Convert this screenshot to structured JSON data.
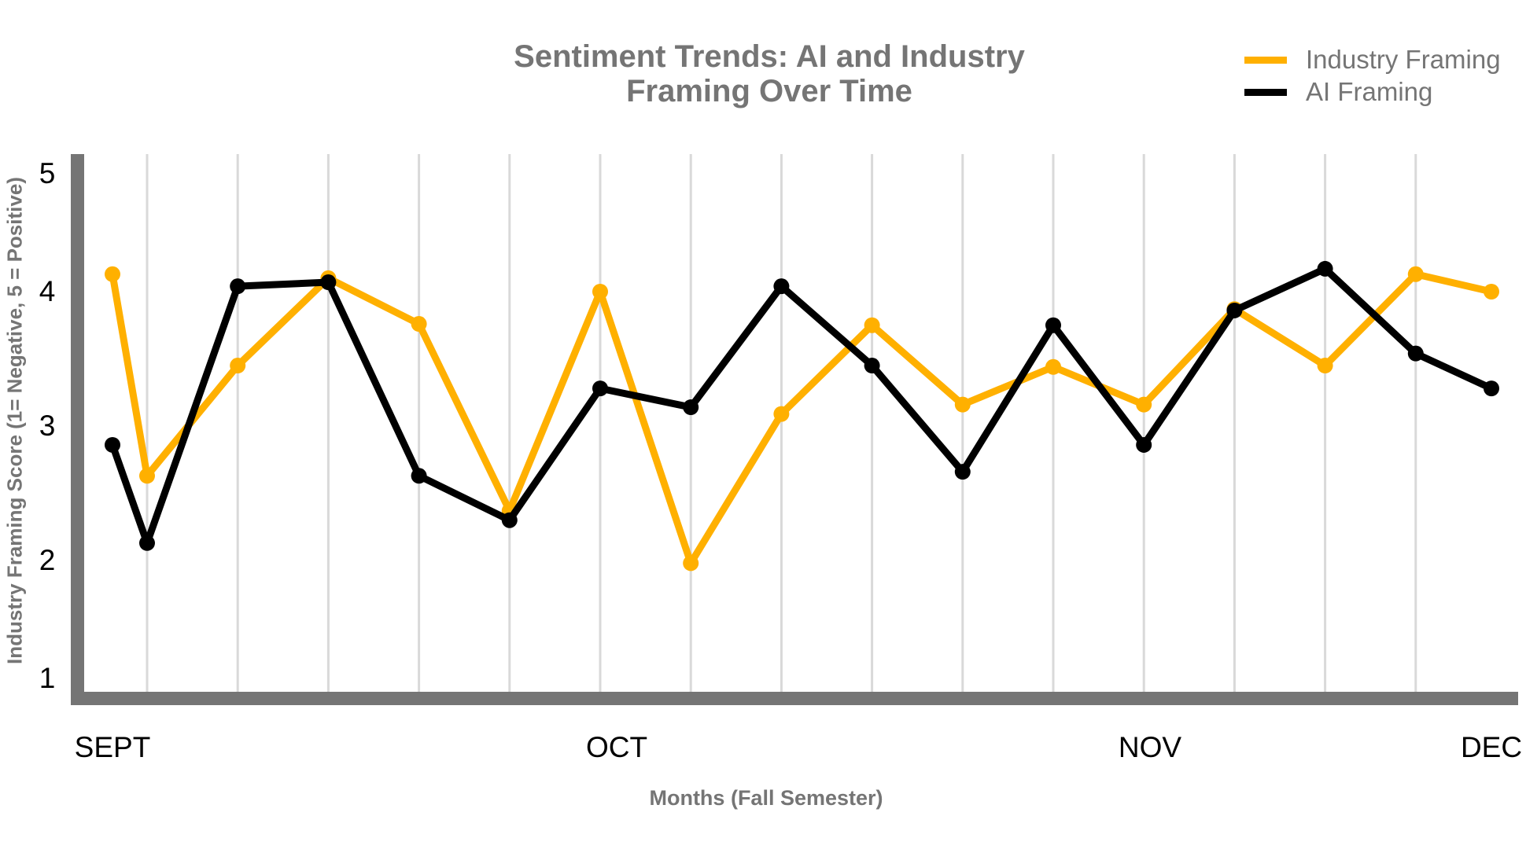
{
  "chart_data": {
    "type": "line",
    "title": "Sentiment Trends: AI and Industry Framing Over Time",
    "title_lines": [
      "Sentiment Trends: AI and Industry",
      "Framing Over Time"
    ],
    "xlabel": "Months (Fall Semester)",
    "ylabel": "Industry Framing Score (1= Negative, 5 = Positive)",
    "x_tick_labels": [
      "SEPT",
      "OCT",
      "NOV",
      "DEC"
    ],
    "y_ticks": [
      1,
      2,
      3,
      4,
      5
    ],
    "ylim": [
      1,
      5
    ],
    "grid": "vertical",
    "legend_position": "top-right",
    "series": [
      {
        "name": "Industry Framing",
        "color": "#FFB000",
        "values": [
          4.13,
          2.63,
          3.45,
          4.1,
          3.76,
          2.37,
          4.0,
          1.98,
          3.09,
          3.75,
          3.16,
          3.44,
          3.16,
          3.87,
          3.45,
          4.13,
          4.0
        ]
      },
      {
        "name": "AI Framing",
        "color": "#000000",
        "values": [
          2.86,
          2.13,
          4.04,
          4.07,
          2.63,
          2.3,
          3.28,
          3.14,
          4.04,
          3.45,
          2.66,
          3.75,
          2.86,
          3.86,
          4.17,
          3.54,
          3.28
        ]
      }
    ]
  },
  "colors": {
    "axis": "#757575",
    "grid": "#d9d9d9",
    "text_muted": "#757575"
  }
}
